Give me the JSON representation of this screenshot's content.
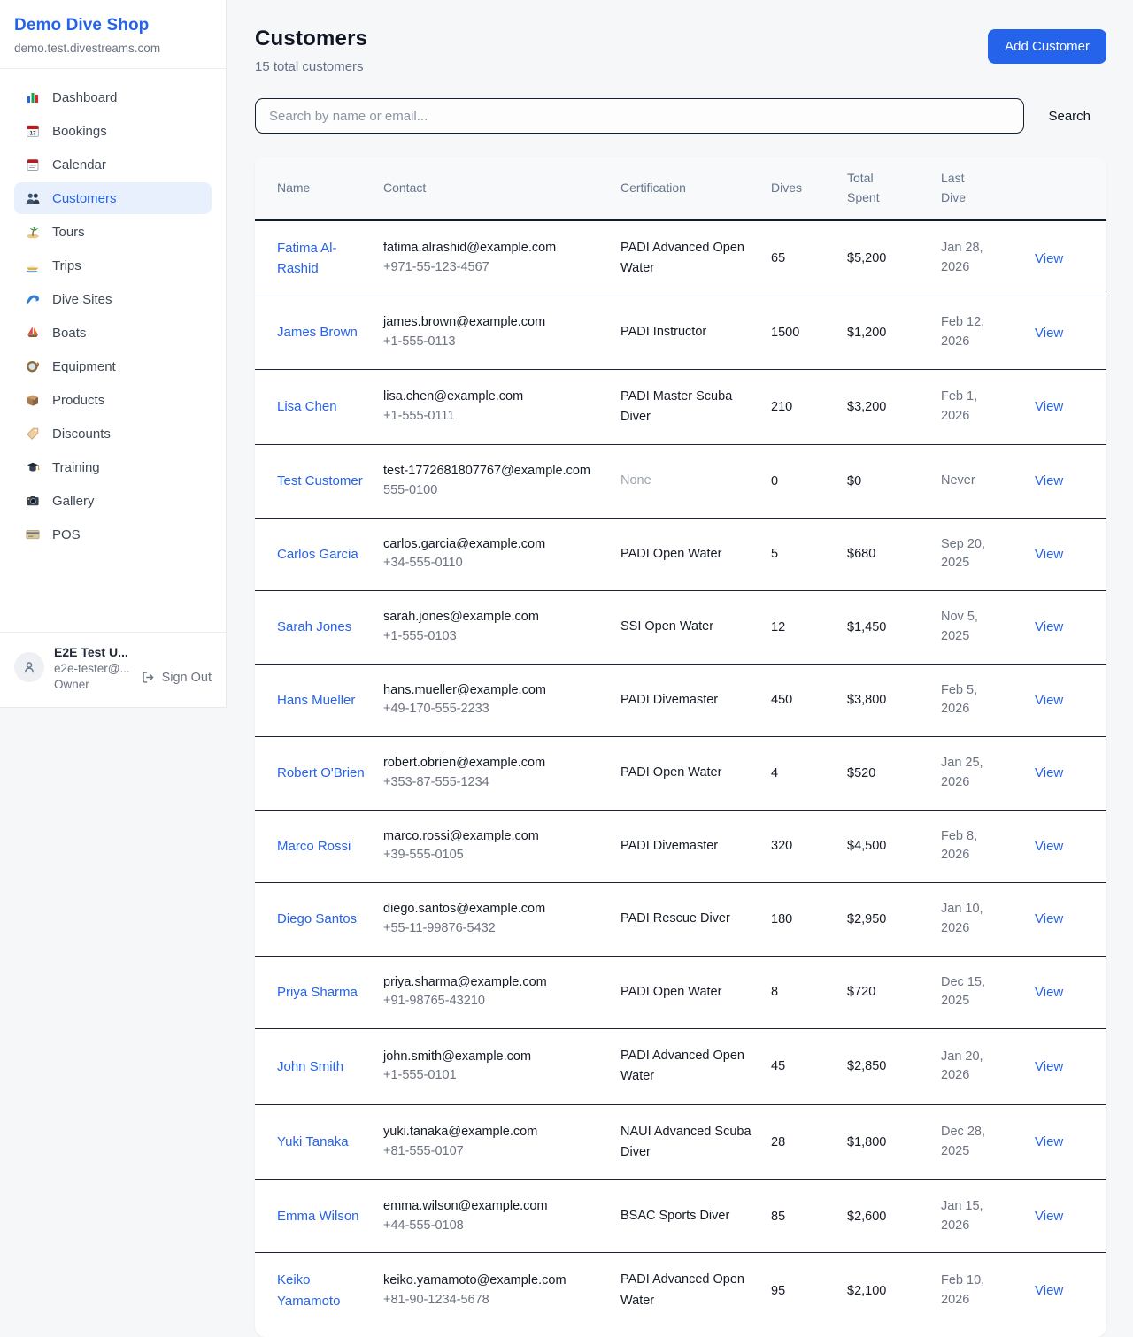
{
  "colors": {
    "accent": "#2563eb"
  },
  "sidebar": {
    "brand": "Demo Dive Shop",
    "domain": "demo.test.divestreams.com",
    "nav": [
      {
        "label": "Dashboard",
        "icon": "bar-chart-icon"
      },
      {
        "label": "Bookings",
        "icon": "calendar-date-icon"
      },
      {
        "label": "Calendar",
        "icon": "calendar-icon"
      },
      {
        "label": "Customers",
        "icon": "users-icon"
      },
      {
        "label": "Tours",
        "icon": "island-icon"
      },
      {
        "label": "Trips",
        "icon": "speedboat-icon"
      },
      {
        "label": "Dive Sites",
        "icon": "wave-icon"
      },
      {
        "label": "Boats",
        "icon": "sailboat-icon"
      },
      {
        "label": "Equipment",
        "icon": "diving-mask-icon"
      },
      {
        "label": "Products",
        "icon": "package-icon"
      },
      {
        "label": "Discounts",
        "icon": "tag-icon"
      },
      {
        "label": "Training",
        "icon": "graduation-cap-icon"
      },
      {
        "label": "Gallery",
        "icon": "camera-icon"
      },
      {
        "label": "POS",
        "icon": "credit-card-icon"
      }
    ],
    "active_item": "Customers",
    "user": {
      "name": "E2E Test U...",
      "email": "e2e-tester@...",
      "role": "Owner",
      "sign_out": "Sign Out"
    }
  },
  "header": {
    "title": "Customers",
    "subtitle": "15 total customers",
    "add_button": "Add Customer"
  },
  "search": {
    "placeholder": "Search by name or email...",
    "button": "Search"
  },
  "table": {
    "columns": [
      "Name",
      "Contact",
      "Certification",
      "Dives",
      "Total Spent",
      "Last Dive",
      ""
    ],
    "view_label": "View",
    "rows": [
      {
        "name": "Fatima Al-Rashid",
        "email": "fatima.alrashid@example.com",
        "phone": "+971-55-123-4567",
        "certification": "PADI Advanced Open Water",
        "dives": "65",
        "total_spent": "$5,200",
        "last_dive": "Jan 28, 2026"
      },
      {
        "name": "James Brown",
        "email": "james.brown@example.com",
        "phone": "+1-555-0113",
        "certification": "PADI Instructor",
        "dives": "1500",
        "total_spent": "$1,200",
        "last_dive": "Feb 12, 2026"
      },
      {
        "name": "Lisa Chen",
        "email": "lisa.chen@example.com",
        "phone": "+1-555-0111",
        "certification": "PADI Master Scuba Diver",
        "dives": "210",
        "total_spent": "$3,200",
        "last_dive": "Feb 1, 2026"
      },
      {
        "name": "Test Customer",
        "email": "test-1772681807767@example.com",
        "phone": "555-0100",
        "certification": "None",
        "dives": "0",
        "total_spent": "$0",
        "last_dive": "Never"
      },
      {
        "name": "Carlos Garcia",
        "email": "carlos.garcia@example.com",
        "phone": "+34-555-0110",
        "certification": "PADI Open Water",
        "dives": "5",
        "total_spent": "$680",
        "last_dive": "Sep 20, 2025"
      },
      {
        "name": "Sarah Jones",
        "email": "sarah.jones@example.com",
        "phone": "+1-555-0103",
        "certification": "SSI Open Water",
        "dives": "12",
        "total_spent": "$1,450",
        "last_dive": "Nov 5, 2025"
      },
      {
        "name": "Hans Mueller",
        "email": "hans.mueller@example.com",
        "phone": "+49-170-555-2233",
        "certification": "PADI Divemaster",
        "dives": "450",
        "total_spent": "$3,800",
        "last_dive": "Feb 5, 2026"
      },
      {
        "name": "Robert O'Brien",
        "email": "robert.obrien@example.com",
        "phone": "+353-87-555-1234",
        "certification": "PADI Open Water",
        "dives": "4",
        "total_spent": "$520",
        "last_dive": "Jan 25, 2026"
      },
      {
        "name": "Marco Rossi",
        "email": "marco.rossi@example.com",
        "phone": "+39-555-0105",
        "certification": "PADI Divemaster",
        "dives": "320",
        "total_spent": "$4,500",
        "last_dive": "Feb 8, 2026"
      },
      {
        "name": "Diego Santos",
        "email": "diego.santos@example.com",
        "phone": "+55-11-99876-5432",
        "certification": "PADI Rescue Diver",
        "dives": "180",
        "total_spent": "$2,950",
        "last_dive": "Jan 10, 2026"
      },
      {
        "name": "Priya Sharma",
        "email": "priya.sharma@example.com",
        "phone": "+91-98765-43210",
        "certification": "PADI Open Water",
        "dives": "8",
        "total_spent": "$720",
        "last_dive": "Dec 15, 2025"
      },
      {
        "name": "John Smith",
        "email": "john.smith@example.com",
        "phone": "+1-555-0101",
        "certification": "PADI Advanced Open Water",
        "dives": "45",
        "total_spent": "$2,850",
        "last_dive": "Jan 20, 2026"
      },
      {
        "name": "Yuki Tanaka",
        "email": "yuki.tanaka@example.com",
        "phone": "+81-555-0107",
        "certification": "NAUI Advanced Scuba Diver",
        "dives": "28",
        "total_spent": "$1,800",
        "last_dive": "Dec 28, 2025"
      },
      {
        "name": "Emma Wilson",
        "email": "emma.wilson@example.com",
        "phone": "+44-555-0108",
        "certification": "BSAC Sports Diver",
        "dives": "85",
        "total_spent": "$2,600",
        "last_dive": "Jan 15, 2026"
      },
      {
        "name": "Keiko Yamamoto",
        "email": "keiko.yamamoto@example.com",
        "phone": "+81-90-1234-5678",
        "certification": "PADI Advanced Open Water",
        "dives": "95",
        "total_spent": "$2,100",
        "last_dive": "Feb 10, 2026"
      }
    ]
  }
}
